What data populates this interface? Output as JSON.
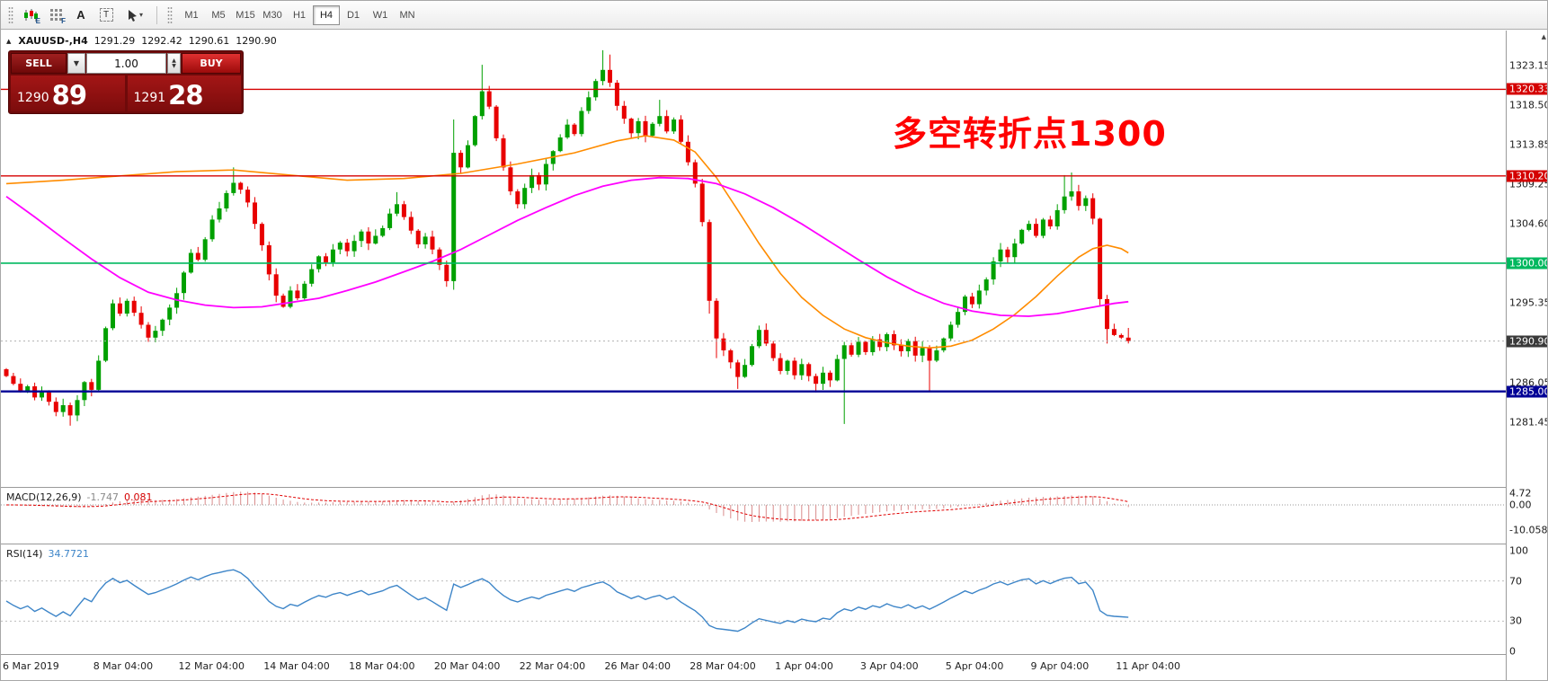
{
  "toolbar": {
    "icons": {
      "chart_badge": "E",
      "grid_badge": "F",
      "letter_a": "A",
      "boxed_t": "T"
    },
    "timeframes": [
      "M1",
      "M5",
      "M15",
      "M30",
      "H1",
      "H4",
      "D1",
      "W1",
      "MN"
    ],
    "active_timeframe": "H4"
  },
  "chart_header": {
    "symbol_period": "XAUUSD-,H4",
    "open": "1291.29",
    "high": "1292.42",
    "low": "1290.61",
    "close": "1290.90"
  },
  "trade": {
    "sell_label": "SELL",
    "buy_label": "BUY",
    "volume": "1.00",
    "sell_price_main": "1290",
    "sell_price_pips": "89",
    "buy_price_main": "1291",
    "buy_price_pips": "28"
  },
  "annotation": {
    "text": "多空转折点1300",
    "color": "#ff0000"
  },
  "indicators": {
    "macd": {
      "label": "MACD(12,26,9)",
      "main_value": "-1.747",
      "signal_value": "0.081"
    },
    "rsi": {
      "label": "RSI(14)",
      "value": "34.7721"
    }
  },
  "chart_data": {
    "type": "candlestick",
    "symbol": "XAUUSD-",
    "period": "H4",
    "colors": {
      "candle_up": "#00a000",
      "candle_down": "#e80000",
      "ma_orange": "#ff8c00",
      "ma_magenta": "#ff00ff",
      "macd_hist": "#d98c8c",
      "macd_signal": "#e00000",
      "rsi": "#3d85c8",
      "level_red": "#d40000",
      "level_green": "#00b85f",
      "level_blue": "#000096",
      "last_price_line": "#b0b0b0",
      "last_price_tag": "#3a3a3a"
    },
    "candles": {
      "first_open": 1287.6,
      "closes": [
        1286.8,
        1285.9,
        1285.1,
        1285.6,
        1284.3,
        1284.9,
        1283.8,
        1282.6,
        1283.4,
        1282.2,
        1284.0,
        1286.1,
        1285.2,
        1288.6,
        1292.4,
        1295.3,
        1294.1,
        1295.6,
        1294.2,
        1292.8,
        1291.3,
        1292.1,
        1293.4,
        1294.8,
        1296.5,
        1298.9,
        1301.2,
        1300.4,
        1302.8,
        1305.1,
        1306.4,
        1308.2,
        1309.4,
        1308.6,
        1307.1,
        1304.6,
        1302.1,
        1298.7,
        1296.2,
        1294.9,
        1296.8,
        1295.9,
        1297.6,
        1299.3,
        1300.8,
        1300.1,
        1301.6,
        1302.4,
        1301.4,
        1302.6,
        1303.7,
        1302.3,
        1303.2,
        1304.1,
        1305.8,
        1306.9,
        1305.4,
        1303.8,
        1302.2,
        1303.1,
        1301.6,
        1299.8,
        1297.9,
        1312.9,
        1311.2,
        1313.8,
        1317.2,
        1320.1,
        1318.3,
        1314.6,
        1311.2,
        1308.4,
        1306.9,
        1308.8,
        1310.3,
        1309.2,
        1311.6,
        1313.1,
        1314.7,
        1316.2,
        1315.1,
        1317.8,
        1319.4,
        1321.3,
        1322.6,
        1321.1,
        1318.4,
        1316.9,
        1315.2,
        1316.6,
        1314.9,
        1316.3,
        1317.2,
        1315.4,
        1316.8,
        1314.2,
        1311.8,
        1309.3,
        1304.8,
        1295.6,
        1291.2,
        1289.8,
        1288.4,
        1286.7,
        1288.1,
        1290.3,
        1292.2,
        1290.6,
        1288.9,
        1287.4,
        1288.6,
        1286.9,
        1288.2,
        1286.8,
        1285.9,
        1287.2,
        1286.3,
        1288.8,
        1290.4,
        1289.3,
        1290.8,
        1289.6,
        1291.1,
        1290.2,
        1291.7,
        1290.4,
        1289.7,
        1290.9,
        1289.2,
        1290.1,
        1288.6,
        1289.8,
        1291.2,
        1292.8,
        1294.3,
        1296.1,
        1295.2,
        1296.8,
        1298.1,
        1300.2,
        1301.6,
        1300.7,
        1302.3,
        1303.9,
        1304.6,
        1303.2,
        1305.1,
        1304.3,
        1306.2,
        1307.8,
        1308.4,
        1306.7,
        1307.6,
        1305.2,
        1295.8,
        1292.3,
        1291.6,
        1291.3,
        1290.9
      ],
      "wicks": {
        "9": [
          0.3,
          1.2
        ],
        "32": [
          1.8,
          0.3
        ],
        "55": [
          1.4,
          0.3
        ],
        "63": [
          3.9,
          1.0
        ],
        "67": [
          3.1,
          0.4
        ],
        "84": [
          2.3,
          0.5
        ],
        "85": [
          1.8,
          0.5
        ],
        "92": [
          1.9,
          0.3
        ],
        "99": [
          0.3,
          1.5
        ],
        "100": [
          0.3,
          2.3
        ],
        "103": [
          0.3,
          1.4
        ],
        "114": [
          0.3,
          1.0
        ],
        "118": [
          0.4,
          7.6
        ],
        "130": [
          0.3,
          3.5
        ],
        "149": [
          2.5,
          0.4
        ],
        "150": [
          2.2,
          0.5
        ],
        "155": [
          0.5,
          1.7
        ],
        "158": [
          1.13,
          0.29
        ]
      }
    },
    "mas": [
      {
        "name": "ma-orange",
        "color": "#ff8c00",
        "width": 1.6,
        "points": [
          [
            0,
            1309.3
          ],
          [
            8,
            1309.7
          ],
          [
            16,
            1310.2
          ],
          [
            24,
            1310.7
          ],
          [
            32,
            1310.9
          ],
          [
            40,
            1310.3
          ],
          [
            48,
            1309.7
          ],
          [
            56,
            1309.9
          ],
          [
            64,
            1310.5
          ],
          [
            72,
            1311.6
          ],
          [
            80,
            1312.9
          ],
          [
            86,
            1314.3
          ],
          [
            90,
            1314.9
          ],
          [
            94,
            1314.4
          ],
          [
            97,
            1313.0
          ],
          [
            100,
            1310.0
          ],
          [
            103,
            1306.2
          ],
          [
            106,
            1302.3
          ],
          [
            109,
            1298.8
          ],
          [
            112,
            1296.0
          ],
          [
            115,
            1293.9
          ],
          [
            118,
            1292.3
          ],
          [
            121,
            1291.3
          ],
          [
            124,
            1290.7
          ],
          [
            127,
            1290.3
          ],
          [
            130,
            1290.1
          ],
          [
            133,
            1290.3
          ],
          [
            136,
            1291.0
          ],
          [
            139,
            1292.3
          ],
          [
            142,
            1294.0
          ],
          [
            145,
            1296.1
          ],
          [
            148,
            1298.5
          ],
          [
            151,
            1300.7
          ],
          [
            153,
            1301.7
          ],
          [
            155,
            1302.1
          ],
          [
            157,
            1301.7
          ],
          [
            158,
            1301.2
          ]
        ]
      },
      {
        "name": "ma-magenta",
        "color": "#ff00ff",
        "width": 1.8,
        "points": [
          [
            0,
            1307.8
          ],
          [
            4,
            1305.4
          ],
          [
            8,
            1302.9
          ],
          [
            12,
            1300.5
          ],
          [
            16,
            1298.3
          ],
          [
            20,
            1296.6
          ],
          [
            24,
            1295.7
          ],
          [
            28,
            1295.1
          ],
          [
            32,
            1294.8
          ],
          [
            36,
            1294.9
          ],
          [
            40,
            1295.4
          ],
          [
            44,
            1295.9
          ],
          [
            48,
            1296.8
          ],
          [
            52,
            1297.8
          ],
          [
            56,
            1299.0
          ],
          [
            60,
            1300.2
          ],
          [
            64,
            1301.6
          ],
          [
            68,
            1303.3
          ],
          [
            72,
            1305.0
          ],
          [
            76,
            1306.5
          ],
          [
            80,
            1307.9
          ],
          [
            84,
            1309.0
          ],
          [
            88,
            1309.7
          ],
          [
            92,
            1310.0
          ],
          [
            96,
            1309.9
          ],
          [
            100,
            1309.3
          ],
          [
            104,
            1308.1
          ],
          [
            108,
            1306.5
          ],
          [
            112,
            1304.6
          ],
          [
            116,
            1302.5
          ],
          [
            120,
            1300.4
          ],
          [
            124,
            1298.4
          ],
          [
            128,
            1296.7
          ],
          [
            132,
            1295.3
          ],
          [
            136,
            1294.4
          ],
          [
            140,
            1293.9
          ],
          [
            144,
            1293.8
          ],
          [
            148,
            1294.1
          ],
          [
            152,
            1294.7
          ],
          [
            156,
            1295.3
          ],
          [
            158,
            1295.5
          ]
        ]
      }
    ],
    "levels": [
      {
        "v": 1320.33,
        "t": "1320.33",
        "color": "#d40000",
        "w": 1.4
      },
      {
        "v": 1310.2,
        "t": "1310.20",
        "color": "#d40000",
        "w": 1.4
      },
      {
        "v": 1300.0,
        "t": "1300.00",
        "color": "#00b85f",
        "w": 1.6
      },
      {
        "v": 1285.0,
        "t": "1285.00",
        "color": "#000096",
        "w": 2.4
      },
      {
        "v": 1290.9,
        "t": "1290.90",
        "color": "#b0b0b0",
        "w": 1,
        "dash": "2,3",
        "tag": "#3a3a3a"
      }
    ],
    "price_ticks": [
      {
        "v": 1323.15,
        "t": "1323.15"
      },
      {
        "v": 1318.5,
        "t": "1318.50"
      },
      {
        "v": 1313.85,
        "t": "1313.85"
      },
      {
        "v": 1309.25,
        "t": "1309.25"
      },
      {
        "v": 1304.6,
        "t": "1304.60"
      },
      {
        "v": 1295.35,
        "t": "1295.35"
      },
      {
        "v": 1286.05,
        "t": "1286.05"
      },
      {
        "v": 1281.45,
        "t": "1281.45"
      }
    ],
    "macd_ticks": [
      {
        "v": 4.72,
        "t": "4.72"
      },
      {
        "v": 0,
        "t": "0.00"
      },
      {
        "v": -10.058,
        "t": "-10.058"
      }
    ],
    "rsi_ticks": [
      {
        "v": 100,
        "t": "100"
      },
      {
        "v": 70,
        "t": "70"
      },
      {
        "v": 30,
        "t": "30"
      },
      {
        "v": 0,
        "t": "0"
      }
    ],
    "rsi_levels": [
      70,
      30
    ],
    "time_labels": [
      {
        "label": "6 Mar 2019",
        "i": 0
      },
      {
        "label": "8 Mar 04:00",
        "i": 13
      },
      {
        "label": "12 Mar 04:00",
        "i": 25
      },
      {
        "label": "14 Mar 04:00",
        "i": 37
      },
      {
        "label": "18 Mar 04:00",
        "i": 49
      },
      {
        "label": "20 Mar 04:00",
        "i": 61
      },
      {
        "label": "22 Mar 04:00",
        "i": 73
      },
      {
        "label": "26 Mar 04:00",
        "i": 85
      },
      {
        "label": "28 Mar 04:00",
        "i": 97
      },
      {
        "label": "1 Apr 04:00",
        "i": 109
      },
      {
        "label": "3 Apr 04:00",
        "i": 121
      },
      {
        "label": "5 Apr 04:00",
        "i": 133
      },
      {
        "label": "9 Apr 04:00",
        "i": 145
      },
      {
        "label": "11 Apr 04:00",
        "i": 157
      }
    ]
  }
}
